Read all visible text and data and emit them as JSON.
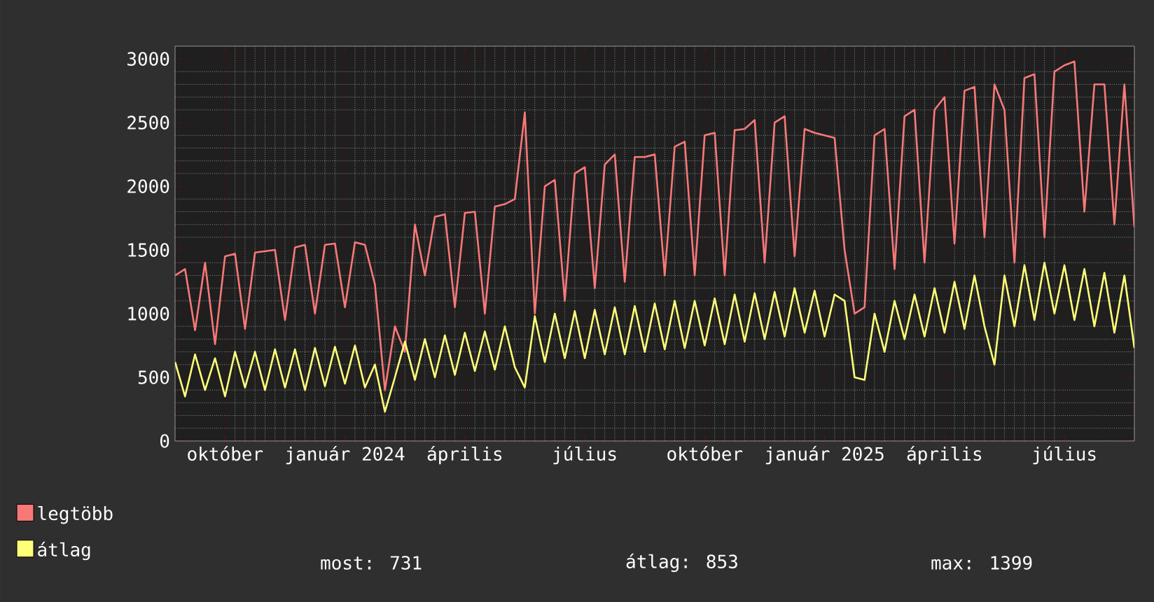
{
  "chart_data": {
    "type": "line",
    "categories": [
      null,
      null,
      null,
      null,
      null,
      "október",
      null,
      null,
      null,
      null,
      null,
      null,
      null,
      null,
      null,
      null,
      null,
      "január 2024",
      null,
      null,
      null,
      null,
      null,
      null,
      null,
      null,
      null,
      null,
      null,
      "április",
      null,
      null,
      null,
      null,
      null,
      null,
      null,
      null,
      null,
      null,
      null,
      "július",
      null,
      null,
      null,
      null,
      null,
      null,
      null,
      null,
      null,
      null,
      null,
      "október",
      null,
      null,
      null,
      null,
      null,
      null,
      null,
      null,
      null,
      null,
      null,
      "január 2025",
      null,
      null,
      null,
      null,
      null,
      null,
      null,
      null,
      null,
      null,
      null,
      "április",
      null,
      null,
      null,
      null,
      null,
      null,
      null,
      null,
      null,
      null,
      null,
      "július",
      null,
      null,
      null,
      null,
      null,
      null,
      null
    ],
    "ylim": [
      0,
      3100
    ],
    "yticks": [
      0,
      500,
      1000,
      1500,
      2000,
      2500,
      3000
    ],
    "grid": true,
    "legend": "bottom left",
    "marker": "none",
    "line_style": "solid",
    "annotations": [
      "most: 731",
      "átlag: 853",
      "max: 1399"
    ],
    "series": [
      {
        "name": "legtöbb",
        "color": "#f87878",
        "values": [
          1300,
          1350,
          870,
          1400,
          760,
          1450,
          1470,
          880,
          1480,
          1490,
          1500,
          950,
          1520,
          1540,
          1000,
          1540,
          1550,
          1050,
          1560,
          1540,
          1230,
          400,
          900,
          700,
          1700,
          1300,
          1760,
          1780,
          1050,
          1790,
          1800,
          1000,
          1840,
          1860,
          1900,
          2580,
          1000,
          2000,
          2050,
          1100,
          2100,
          2150,
          1200,
          2170,
          2250,
          1250,
          2230,
          2230,
          2250,
          1300,
          2310,
          2350,
          1300,
          2400,
          2420,
          1300,
          2440,
          2450,
          2520,
          1400,
          2500,
          2550,
          1450,
          2450,
          2420,
          2400,
          2380,
          1500,
          1000,
          1050,
          2400,
          2450,
          1350,
          2550,
          2600,
          1400,
          2600,
          2700,
          1550,
          2750,
          2780,
          1600,
          2800,
          2600,
          1400,
          2850,
          2880,
          1600,
          2900,
          2950,
          2980,
          1800,
          2800,
          2800,
          1700,
          2800,
          1680
        ]
      },
      {
        "name": "átlag",
        "color": "#ffff78",
        "values": [
          620,
          350,
          680,
          400,
          650,
          350,
          700,
          420,
          700,
          400,
          720,
          420,
          720,
          400,
          730,
          430,
          740,
          450,
          750,
          420,
          600,
          230,
          500,
          780,
          480,
          800,
          500,
          830,
          520,
          850,
          550,
          860,
          560,
          900,
          580,
          420,
          980,
          620,
          1000,
          650,
          1020,
          650,
          1030,
          680,
          1050,
          680,
          1060,
          700,
          1080,
          720,
          1100,
          730,
          1100,
          750,
          1120,
          760,
          1150,
          780,
          1160,
          800,
          1170,
          820,
          1200,
          850,
          1180,
          820,
          1150,
          1100,
          500,
          480,
          1000,
          700,
          1100,
          800,
          1150,
          820,
          1200,
          850,
          1250,
          880,
          1300,
          900,
          600,
          1300,
          900,
          1380,
          950,
          1400,
          1000,
          1380,
          950,
          1350,
          900,
          1320,
          850,
          1300,
          731
        ]
      }
    ]
  }
}
